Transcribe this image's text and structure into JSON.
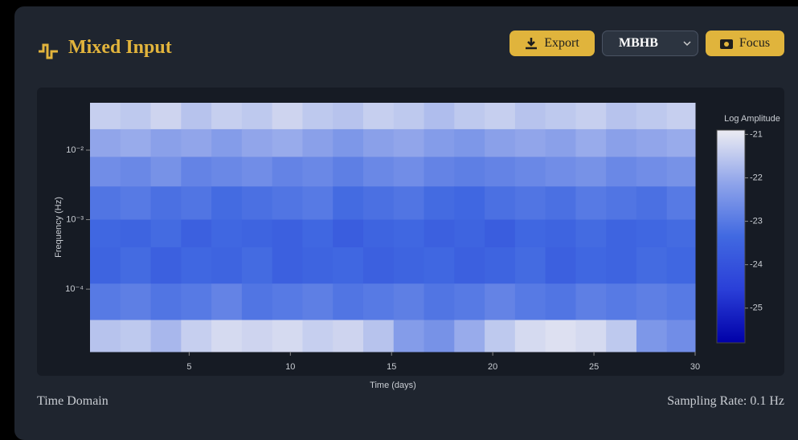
{
  "header": {
    "title": "Mixed Input",
    "export": "Export",
    "select": "MBHB",
    "focus": "Focus"
  },
  "footer": {
    "left": "Time Domain",
    "right": "Sampling Rate: 0.1 Hz"
  },
  "chart_data": {
    "type": "heatmap",
    "x_label": "Time (days)",
    "y_label": "Frequency (Hz)",
    "y_log": true,
    "xlim": [
      0.1,
      30
    ],
    "xticks": [
      5,
      10,
      15,
      20,
      25,
      30
    ],
    "ylim": [
      1.26e-05,
      0.048
    ],
    "yticks": [
      {
        "value": 0.01,
        "label": "10⁻²"
      },
      {
        "value": 0.001,
        "label": "10⁻³"
      },
      {
        "value": 0.0001,
        "label": "10⁻⁴"
      }
    ],
    "xbins": [
      0.1,
      1.6,
      3.1,
      4.6,
      6.1,
      7.6,
      9.1,
      10.6,
      12.1,
      13.6,
      15.1,
      16.6,
      18.1,
      19.6,
      21.1,
      22.6,
      24.1,
      25.6,
      27.1,
      28.6,
      30
    ],
    "ybins": [
      0.048,
      0.02,
      0.008,
      0.003,
      0.001,
      0.0004,
      0.00012,
      3.6e-05,
      1.26e-05
    ],
    "z": [
      [
        -21.4,
        -21.5,
        -21.3,
        -21.6,
        -21.4,
        -21.5,
        -21.3,
        -21.5,
        -21.6,
        -21.4,
        -21.5,
        -21.7,
        -21.5,
        -21.4,
        -21.6,
        -21.5,
        -21.4,
        -21.6,
        -21.5,
        -21.4
      ],
      [
        -22.1,
        -22.0,
        -22.2,
        -22.1,
        -22.3,
        -22.1,
        -22.0,
        -22.2,
        -22.4,
        -22.2,
        -22.1,
        -22.3,
        -22.4,
        -22.2,
        -22.1,
        -22.2,
        -22.0,
        -22.2,
        -22.1,
        -22.0
      ],
      [
        -22.6,
        -22.7,
        -22.5,
        -22.8,
        -22.7,
        -22.6,
        -22.8,
        -22.7,
        -22.9,
        -22.7,
        -22.6,
        -22.8,
        -22.9,
        -22.8,
        -22.7,
        -22.6,
        -22.5,
        -22.7,
        -22.6,
        -22.5
      ],
      [
        -23.1,
        -23.0,
        -23.2,
        -23.1,
        -23.3,
        -23.2,
        -23.1,
        -23.0,
        -23.3,
        -23.2,
        -23.1,
        -23.3,
        -23.4,
        -23.2,
        -23.1,
        -23.2,
        -23.0,
        -23.1,
        -23.2,
        -23.0
      ],
      [
        -23.4,
        -23.5,
        -23.3,
        -23.6,
        -23.4,
        -23.5,
        -23.6,
        -23.4,
        -23.7,
        -23.5,
        -23.4,
        -23.6,
        -23.5,
        -23.7,
        -23.4,
        -23.5,
        -23.3,
        -23.5,
        -23.4,
        -23.3
      ],
      [
        -23.5,
        -23.3,
        -23.6,
        -23.4,
        -23.5,
        -23.3,
        -23.6,
        -23.5,
        -23.4,
        -23.6,
        -23.5,
        -23.4,
        -23.6,
        -23.5,
        -23.3,
        -23.6,
        -23.4,
        -23.5,
        -23.3,
        -23.4
      ],
      [
        -23.0,
        -22.9,
        -23.1,
        -23.0,
        -22.8,
        -23.1,
        -23.0,
        -22.9,
        -23.1,
        -23.0,
        -22.9,
        -23.1,
        -23.0,
        -22.8,
        -23.0,
        -23.1,
        -22.9,
        -23.0,
        -22.9,
        -23.0
      ],
      [
        -21.6,
        -21.5,
        -21.8,
        -21.4,
        -21.2,
        -21.3,
        -21.2,
        -21.4,
        -21.3,
        -21.6,
        -22.3,
        -22.5,
        -22.0,
        -21.5,
        -21.2,
        -21.1,
        -21.2,
        -21.5,
        -22.4,
        -22.6
      ]
    ],
    "colorbar": {
      "title": "Log Amplitude",
      "zlim": [
        -25.8,
        -20.9
      ],
      "ticks": [
        -21,
        -22,
        -23,
        -24,
        -25
      ],
      "colors": [
        "#0000a8",
        "#2a3fd8",
        "#4169e1",
        "#8fa4ea",
        "#ececf2"
      ]
    }
  }
}
